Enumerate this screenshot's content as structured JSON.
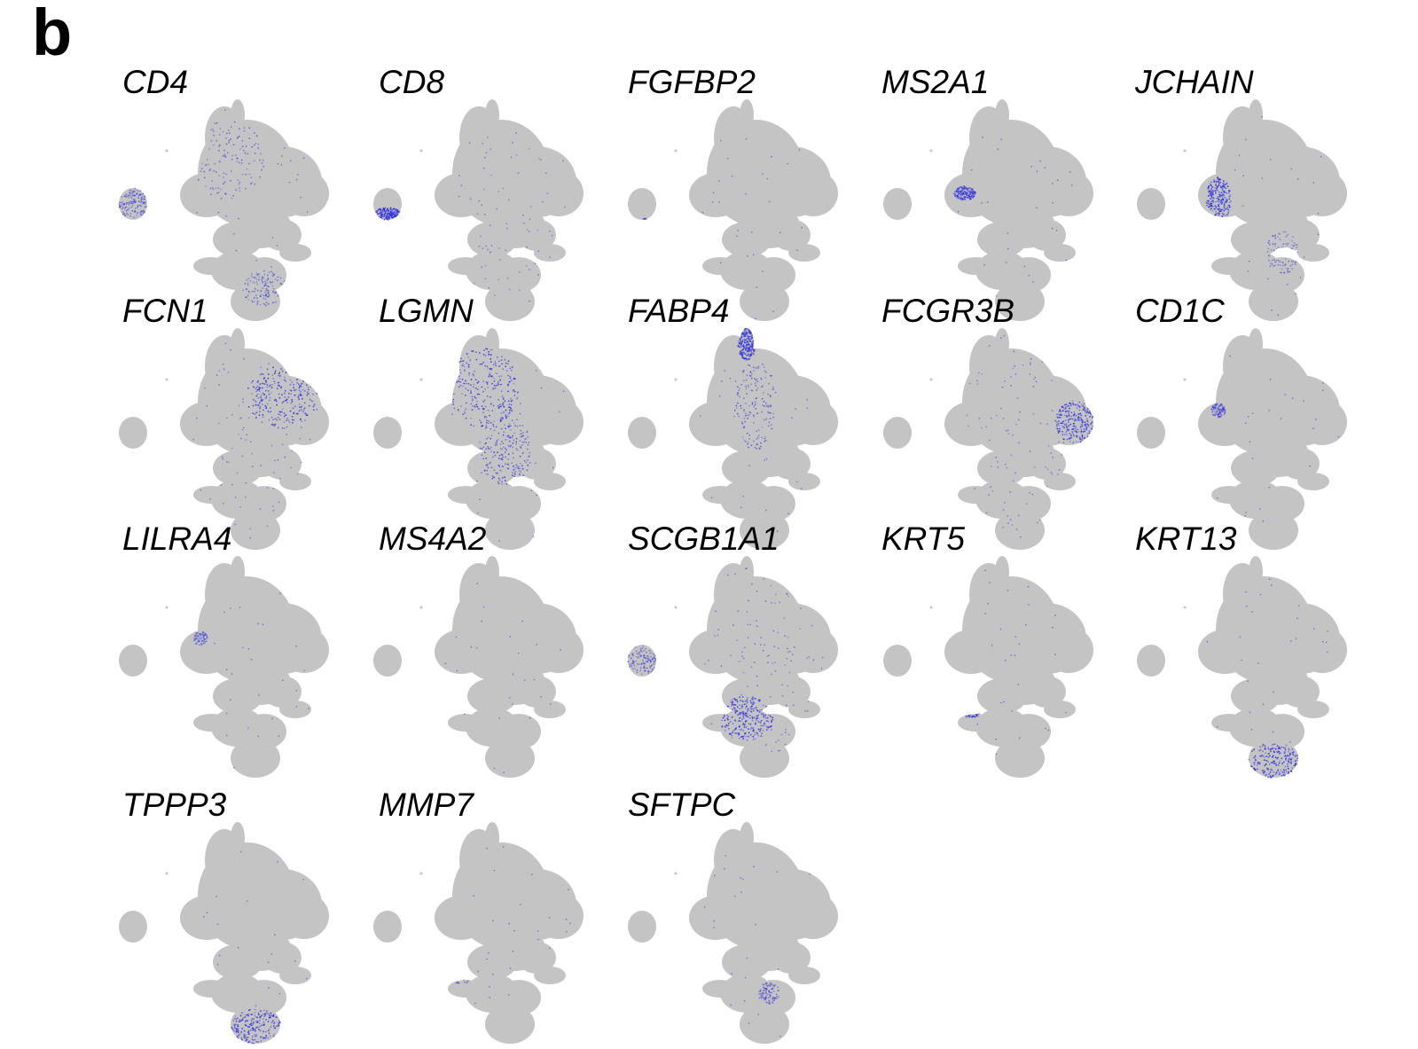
{
  "figure": {
    "panel_letter": "b"
  },
  "chart_data": {
    "type": "scatter",
    "colors": {
      "background_cells": "#c4c4c4",
      "expression": "#3333dd"
    },
    "panels": [
      {
        "gene": "CD4",
        "hotspots": [
          [
            "smallCluster",
            0.6
          ],
          [
            "upperLeft",
            0.5
          ],
          [
            "bottomTail",
            0.5
          ]
        ]
      },
      {
        "gene": "CD8",
        "hotspots": [
          [
            "smallClusterBottom",
            1.0
          ],
          [
            "scatter",
            0.2
          ]
        ]
      },
      {
        "gene": "FGFBP2",
        "hotspots": [
          [
            "smallClusterBottomRight",
            0.5
          ]
        ]
      },
      {
        "gene": "MS2A1",
        "hotspots": [
          [
            "leftEdgeMid",
            0.7
          ]
        ]
      },
      {
        "gene": "JCHAIN",
        "hotspots": [
          [
            "leftArc",
            1.0
          ],
          [
            "midRight",
            0.4
          ]
        ]
      },
      {
        "gene": "FCN1",
        "hotspots": [
          [
            "upperRight",
            1.0
          ],
          [
            "scatter",
            0.3
          ]
        ]
      },
      {
        "gene": "LGMN",
        "hotspots": [
          [
            "upperLeft",
            1.0
          ],
          [
            "middle",
            0.8
          ]
        ]
      },
      {
        "gene": "FABP4",
        "hotspots": [
          [
            "topSpike",
            1.0
          ],
          [
            "diagonal",
            0.6
          ]
        ]
      },
      {
        "gene": "FCGR3B",
        "hotspots": [
          [
            "rightLobe",
            1.0
          ],
          [
            "scatter",
            0.3
          ]
        ]
      },
      {
        "gene": "CD1C",
        "hotspots": [
          [
            "leftEdgeUpper",
            0.4
          ]
        ]
      },
      {
        "gene": "LILRA4",
        "hotspots": [
          [
            "leftEdgeUpper",
            0.3
          ]
        ]
      },
      {
        "gene": "MS4A2",
        "hotspots": []
      },
      {
        "gene": "SCGB1A1",
        "hotspots": [
          [
            "middleLower",
            1.0
          ],
          [
            "smallCluster",
            0.5
          ],
          [
            "scatter",
            0.4
          ]
        ]
      },
      {
        "gene": "KRT5",
        "hotspots": [
          [
            "lowerLeftCenter",
            0.7
          ]
        ]
      },
      {
        "gene": "KRT13",
        "hotspots": [
          [
            "bottomLobe",
            1.0
          ]
        ]
      },
      {
        "gene": "TPPP3",
        "hotspots": [
          [
            "bottomLobe",
            1.0
          ]
        ]
      },
      {
        "gene": "MMP7",
        "hotspots": [
          [
            "lowerLeftCenter",
            0.4
          ]
        ]
      },
      {
        "gene": "SFTPC",
        "hotspots": [
          [
            "midRightLower",
            0.4
          ]
        ]
      }
    ]
  }
}
